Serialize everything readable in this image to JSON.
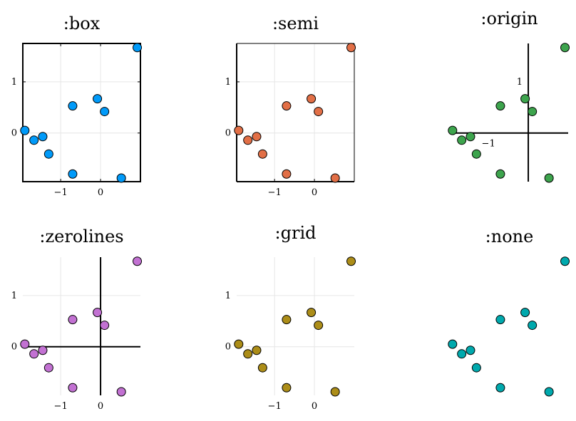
{
  "chart_data": [
    {
      "type": "scatter",
      "title": ":box",
      "framestyle": "box",
      "grid": true,
      "color": "#009af9",
      "xticks": [
        "−1",
        "0"
      ],
      "yticks": [
        "0",
        "1"
      ],
      "xlim": [
        -1.95,
        1.0
      ],
      "ylim": [
        -0.95,
        1.75
      ],
      "x": [
        -1.9,
        -1.67,
        -1.45,
        -1.3,
        -0.7,
        -0.7,
        -0.08,
        0.1,
        0.52,
        0.92
      ],
      "y": [
        0.05,
        -0.14,
        -0.07,
        -0.41,
        0.53,
        -0.8,
        0.67,
        0.42,
        -0.88,
        1.67
      ]
    },
    {
      "type": "scatter",
      "title": ":semi",
      "framestyle": "semi",
      "grid": true,
      "color": "#e26f46",
      "xticks": [
        "−1",
        "0"
      ],
      "yticks": [
        "0",
        "1"
      ],
      "xlim": [
        -1.95,
        1.0
      ],
      "ylim": [
        -0.95,
        1.75
      ],
      "x": [
        -1.9,
        -1.67,
        -1.45,
        -1.3,
        -0.7,
        -0.7,
        -0.08,
        0.1,
        0.52,
        0.92
      ],
      "y": [
        0.05,
        -0.14,
        -0.07,
        -0.41,
        0.53,
        -0.8,
        0.67,
        0.42,
        -0.88,
        1.67
      ]
    },
    {
      "type": "scatter",
      "title": ":origin",
      "framestyle": "origin",
      "grid": false,
      "color": "#3da44d",
      "xticks": [
        "−1"
      ],
      "yticks": [
        "1"
      ],
      "xlim": [
        -1.95,
        1.0
      ],
      "ylim": [
        -0.95,
        1.75
      ],
      "x": [
        -1.9,
        -1.67,
        -1.45,
        -1.3,
        -0.7,
        -0.7,
        -0.08,
        0.1,
        0.52,
        0.92
      ],
      "y": [
        0.05,
        -0.14,
        -0.07,
        -0.41,
        0.53,
        -0.8,
        0.67,
        0.42,
        -0.88,
        1.67
      ]
    },
    {
      "type": "scatter",
      "title": ":zerolines",
      "framestyle": "zerolines",
      "grid": true,
      "color": "#c271d2",
      "xticks": [
        "−1",
        "0"
      ],
      "yticks": [
        "0",
        "1"
      ],
      "xlim": [
        -1.95,
        1.0
      ],
      "ylim": [
        -0.95,
        1.75
      ],
      "x": [
        -1.9,
        -1.67,
        -1.45,
        -1.3,
        -0.7,
        -0.7,
        -0.08,
        0.1,
        0.52,
        0.92
      ],
      "y": [
        0.05,
        -0.14,
        -0.07,
        -0.41,
        0.53,
        -0.8,
        0.67,
        0.42,
        -0.88,
        1.67
      ]
    },
    {
      "type": "scatter",
      "title": ":grid",
      "framestyle": "grid",
      "grid": true,
      "color": "#ac8d18",
      "xticks": [
        "−1",
        "0"
      ],
      "yticks": [
        "0",
        "1"
      ],
      "xlim": [
        -1.95,
        1.0
      ],
      "ylim": [
        -0.95,
        1.75
      ],
      "x": [
        -1.9,
        -1.67,
        -1.45,
        -1.3,
        -0.7,
        -0.7,
        -0.08,
        0.1,
        0.52,
        0.92
      ],
      "y": [
        0.05,
        -0.14,
        -0.07,
        -0.41,
        0.53,
        -0.8,
        0.67,
        0.42,
        -0.88,
        1.67
      ]
    },
    {
      "type": "scatter",
      "title": ":none",
      "framestyle": "none",
      "grid": false,
      "color": "#00a9ad",
      "xticks": [],
      "yticks": [],
      "xlim": [
        -1.95,
        1.0
      ],
      "ylim": [
        -0.95,
        1.75
      ],
      "x": [
        -1.9,
        -1.67,
        -1.45,
        -1.3,
        -0.7,
        -0.7,
        -0.08,
        0.1,
        0.52,
        0.92
      ],
      "y": [
        0.05,
        -0.14,
        -0.07,
        -0.41,
        0.53,
        -0.8,
        0.67,
        0.42,
        -0.88,
        1.67
      ]
    }
  ]
}
